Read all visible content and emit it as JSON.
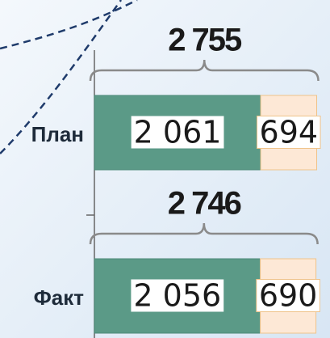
{
  "chart_data": {
    "type": "stacked-bar-horizontal",
    "categories": [
      "План",
      "Факт"
    ],
    "series": [
      {
        "color": "#5b9a87",
        "values": [
          2061,
          2056
        ],
        "value_labels": [
          "2 061",
          "2 056"
        ]
      },
      {
        "color": "#fde8d6",
        "values": [
          694,
          690
        ],
        "value_labels": [
          "694",
          "690"
        ]
      }
    ],
    "totals": [
      2755,
      2746
    ],
    "total_labels": [
      "2 755",
      "2 746"
    ]
  }
}
